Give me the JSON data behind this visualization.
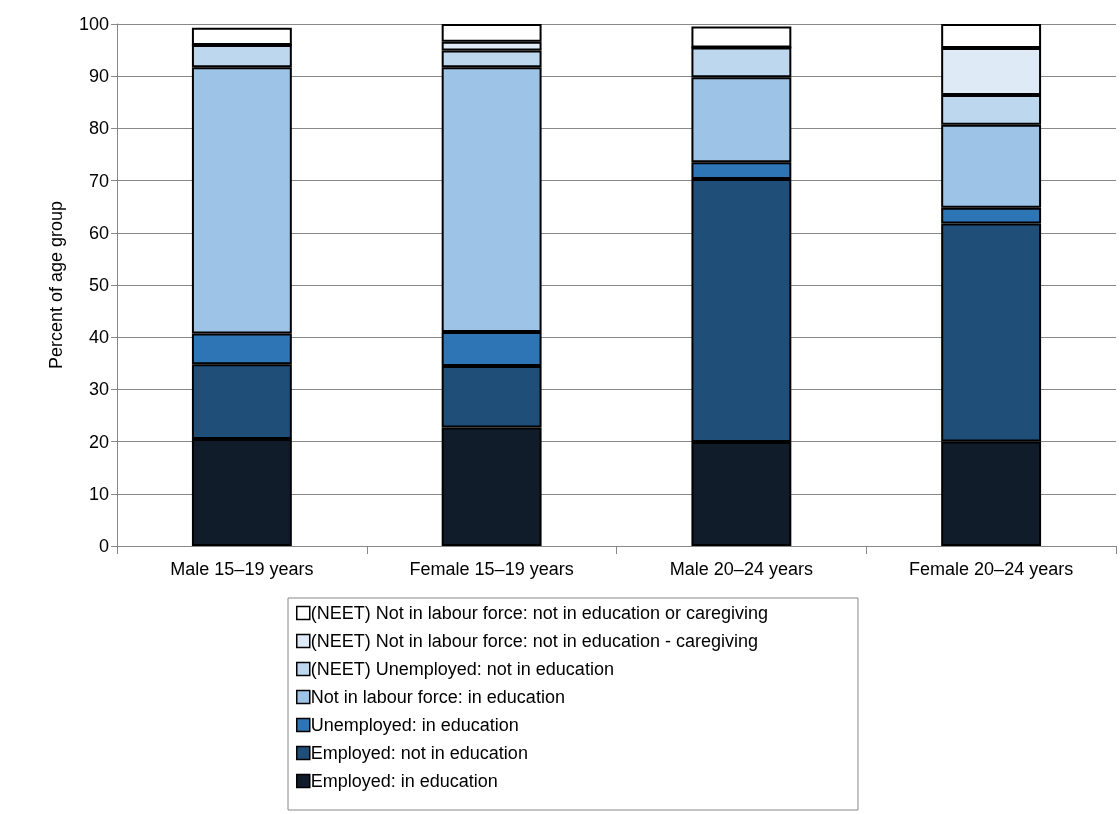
{
  "chart_data": {
    "type": "bar",
    "stacked": true,
    "ylabel": "Percent of age group",
    "categories": [
      "Male 15–19 years",
      "Female 15–19 years",
      "Male 20–24 years",
      "Female 20–24 years"
    ],
    "series": [
      {
        "name": "Employed: in education",
        "color": "#111c2b",
        "values": [
          20.5,
          22.7,
          19.9,
          20.0
        ]
      },
      {
        "name": "Employed: not in education",
        "color": "#1f4e79",
        "values": [
          14.3,
          11.8,
          50.4,
          41.8
        ]
      },
      {
        "name": "Unemployed: in education",
        "color": "#2e75b6",
        "values": [
          5.9,
          6.5,
          3.2,
          3.0
        ]
      },
      {
        "name": "Not in labour force: in education",
        "color": "#9dc3e6",
        "values": [
          51.0,
          50.7,
          16.3,
          15.9
        ]
      },
      {
        "name": "(NEET) Unemployed: not in education",
        "color": "#bdd7ee",
        "values": [
          4.3,
          3.2,
          5.7,
          5.7
        ]
      },
      {
        "name": "(NEET) Not in labour force: not in education - caregiving",
        "color": "#deebf7",
        "values": [
          0,
          1.7,
          0,
          9.0
        ]
      },
      {
        "name": "(NEET) Not in labour force: not in education or caregiving",
        "color": "#ffffff",
        "values": [
          3.3,
          3.4,
          4.0,
          4.6
        ]
      }
    ],
    "ylim": [
      0,
      100
    ],
    "yticks": [
      0,
      10,
      20,
      30,
      40,
      50,
      60,
      70,
      80,
      90,
      100
    ],
    "grid": "y",
    "legend": "bottom"
  }
}
